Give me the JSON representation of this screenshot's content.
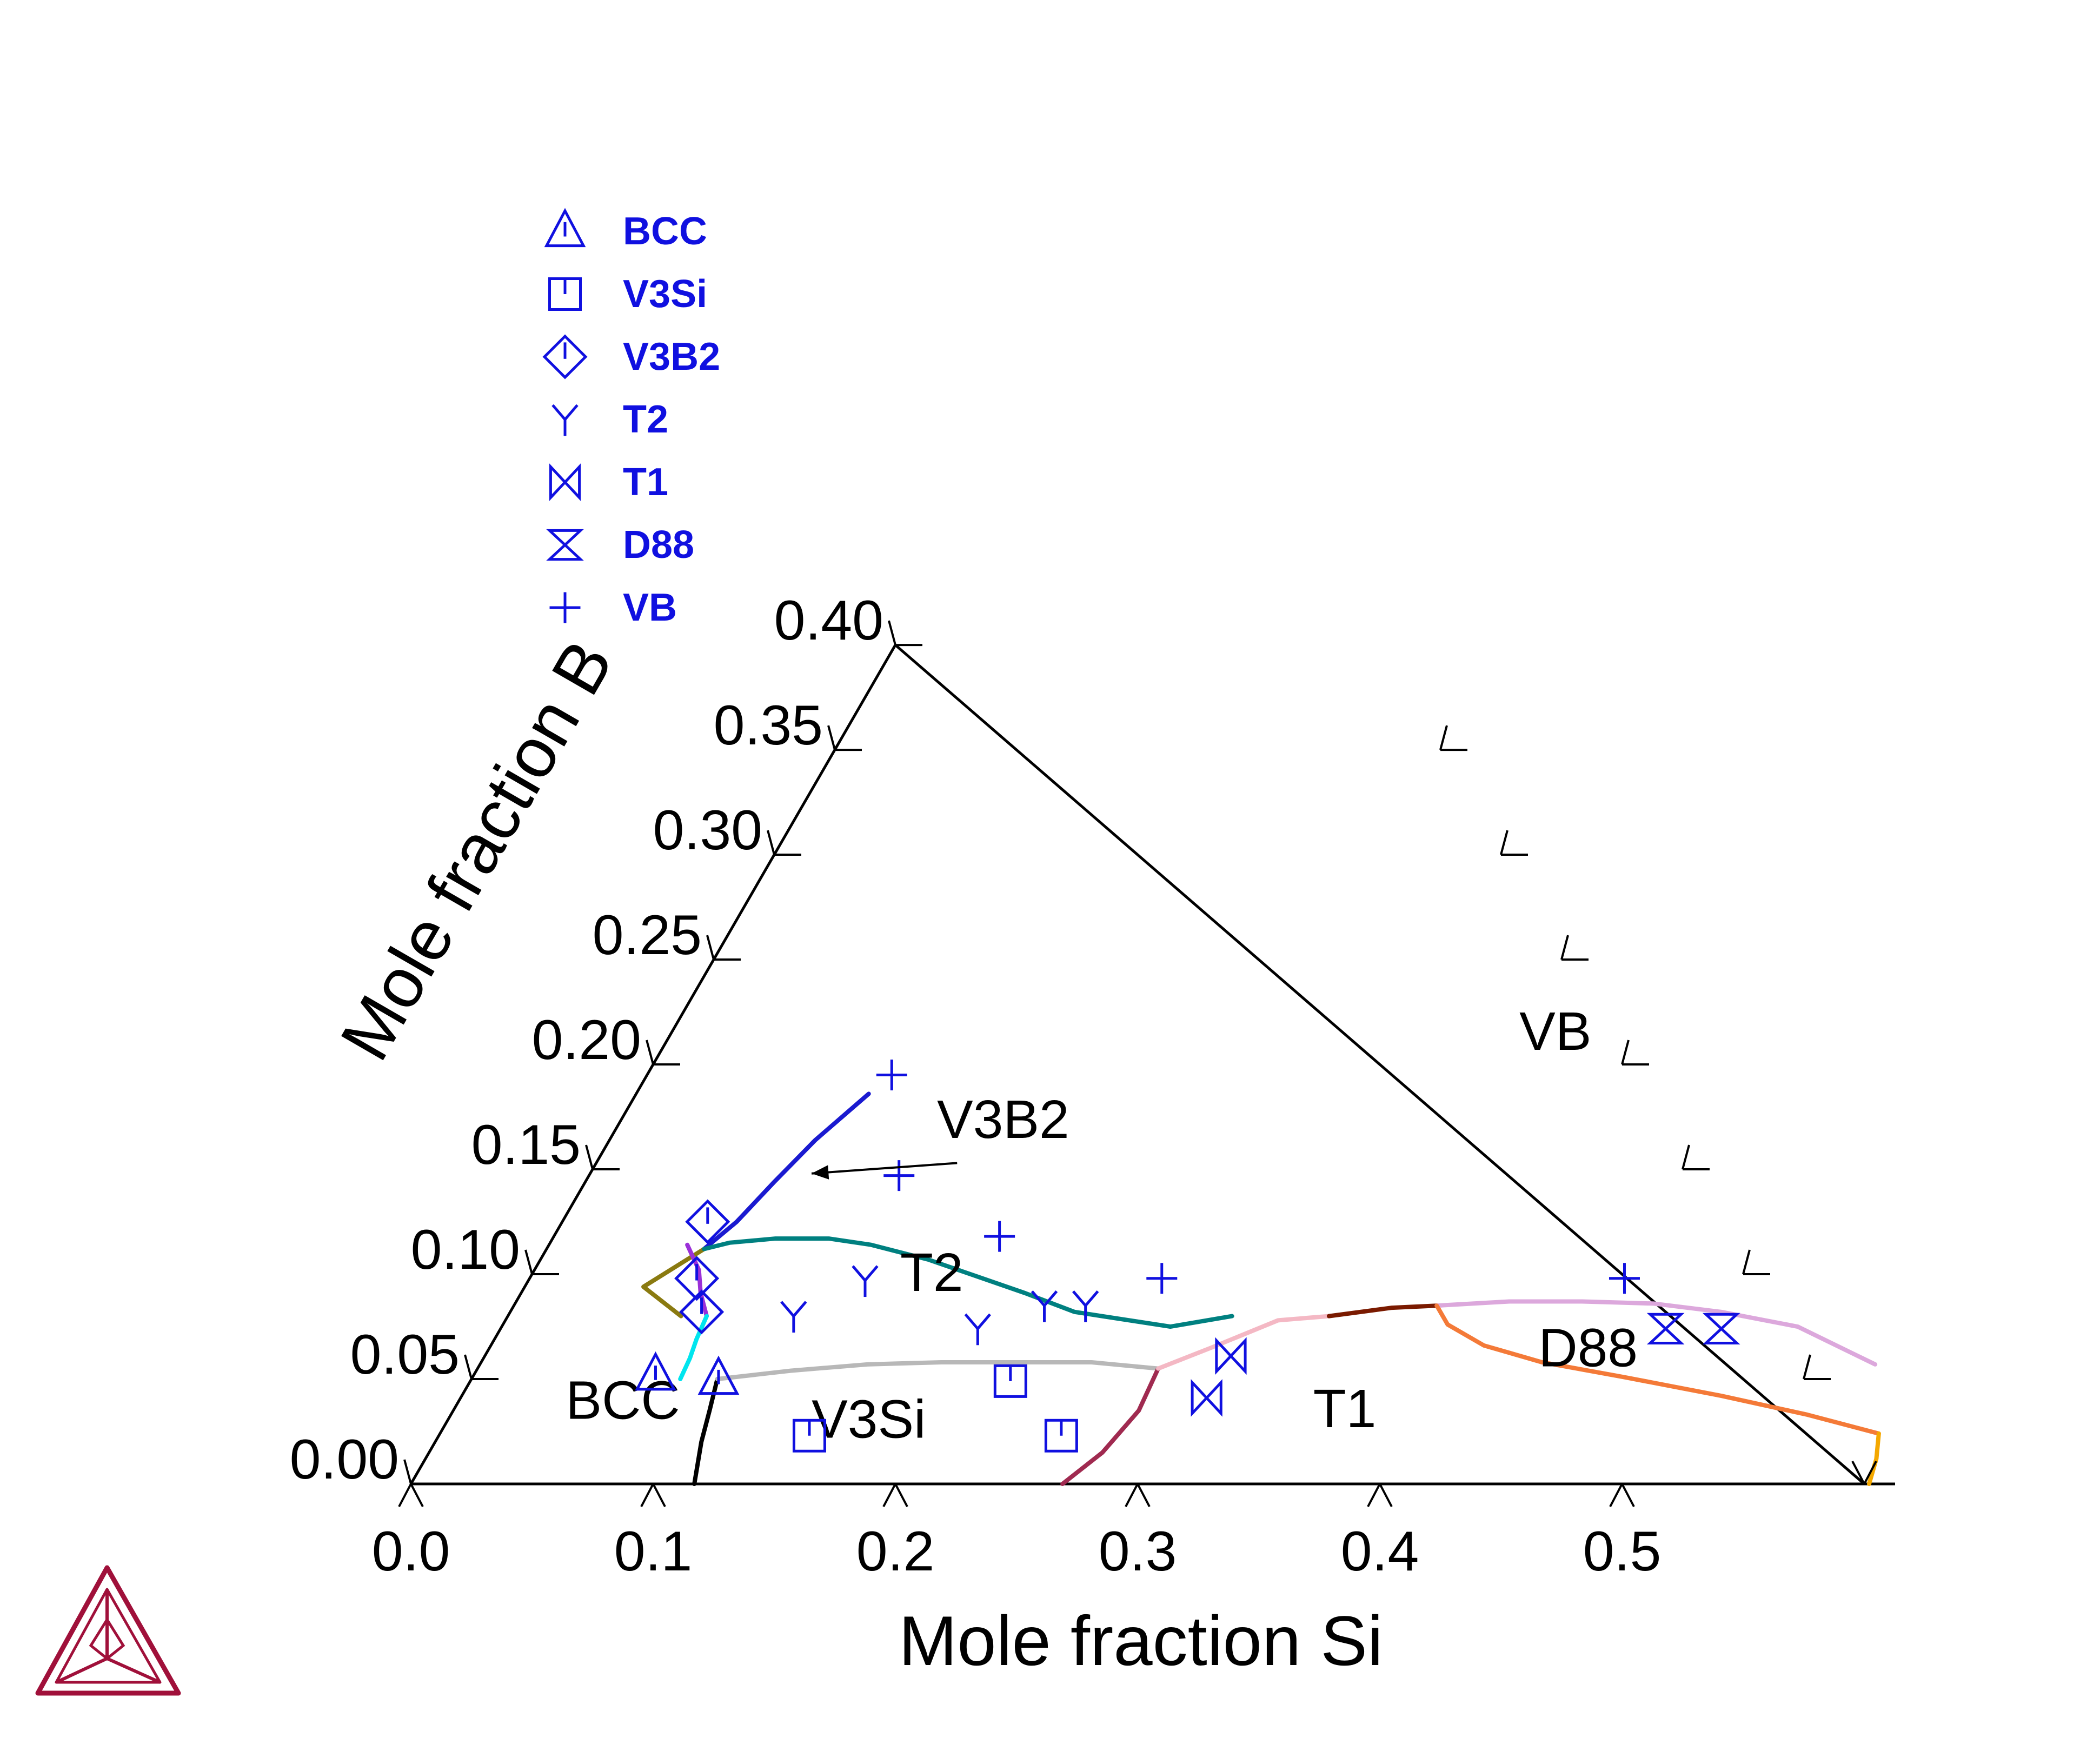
{
  "chart_data": {
    "type": "scatter",
    "subtype": "ternary-phase-diagram",
    "xlabel": "Mole fraction Si",
    "ylabel": "Mole fraction B",
    "xlim": [
      0,
      0.6
    ],
    "ylim": [
      0,
      0.4
    ],
    "x_ticks": [
      "0.0",
      "0.1",
      "0.2",
      "0.3",
      "0.4",
      "0.5"
    ],
    "y_ticks": [
      "0.00",
      "0.05",
      "0.10",
      "0.15",
      "0.20",
      "0.25",
      "0.30",
      "0.35",
      "0.40"
    ],
    "legend_position": "top-left",
    "marker_color": "#1010e0",
    "legend": [
      {
        "name": "BCC",
        "marker": "triangle"
      },
      {
        "name": "V3Si",
        "marker": "square"
      },
      {
        "name": "V3B2",
        "marker": "diamond"
      },
      {
        "name": "T2",
        "marker": "y-mark"
      },
      {
        "name": "T1",
        "marker": "bowtie"
      },
      {
        "name": "D88",
        "marker": "hourglass"
      },
      {
        "name": "VB",
        "marker": "plus"
      }
    ],
    "series": [
      {
        "name": "BCC",
        "marker": "triangle",
        "points": [
          [
            0.075,
            0.052
          ],
          [
            0.102,
            0.05
          ]
        ]
      },
      {
        "name": "V3Si",
        "marker": "square",
        "points": [
          [
            0.223,
            0.049
          ],
          [
            0.153,
            0.023
          ],
          [
            0.257,
            0.023
          ]
        ]
      },
      {
        "name": "V3B2",
        "marker": "diamond",
        "points": [
          [
            0.06,
            0.125
          ],
          [
            0.069,
            0.098
          ],
          [
            0.079,
            0.082
          ]
        ]
      },
      {
        "name": "T2",
        "marker": "y-mark",
        "points": [
          [
            0.139,
            0.097
          ],
          [
            0.118,
            0.08
          ],
          [
            0.197,
            0.074
          ],
          [
            0.219,
            0.085
          ],
          [
            0.236,
            0.085
          ]
        ]
      },
      {
        "name": "T1",
        "marker": "bowtie",
        "points": [
          [
            0.308,
            0.061
          ],
          [
            0.308,
            0.041
          ]
        ]
      },
      {
        "name": "D88",
        "marker": "hourglass",
        "points": [
          [
            0.481,
            0.074
          ],
          [
            0.504,
            0.074
          ]
        ]
      },
      {
        "name": "VB",
        "marker": "plus",
        "points": [
          [
            0.101,
            0.195
          ],
          [
            0.128,
            0.147
          ],
          [
            0.184,
            0.118
          ],
          [
            0.261,
            0.098
          ],
          [
            0.452,
            0.098
          ]
        ]
      }
    ],
    "boundaries": [
      {
        "color": "#1a1ad0",
        "points": [
          [
            0.096,
            0.186
          ],
          [
            0.085,
            0.164
          ],
          [
            0.078,
            0.144
          ],
          [
            0.072,
            0.125
          ],
          [
            0.065,
            0.112
          ]
        ]
      },
      {
        "color": "#8a7a10",
        "points": [
          [
            0.065,
            0.112
          ],
          [
            0.049,
            0.094
          ],
          [
            0.0715,
            0.08
          ]
        ]
      },
      {
        "color": "#008080",
        "points": [
          [
            0.065,
            0.112
          ],
          [
            0.074,
            0.115
          ],
          [
            0.092,
            0.117
          ],
          [
            0.114,
            0.117
          ],
          [
            0.133,
            0.114
          ],
          [
            0.16,
            0.107
          ],
          [
            0.181,
            0.1
          ],
          [
            0.208,
            0.091
          ],
          [
            0.233,
            0.082
          ],
          [
            0.276,
            0.075
          ],
          [
            0.299,
            0.08
          ]
        ]
      },
      {
        "color": "#9b30d8",
        "points": [
          [
            0.0571,
            0.114
          ],
          [
            0.0679,
            0.102
          ],
          [
            0.0741,
            0.091
          ],
          [
            0.0821,
            0.08
          ]
        ]
      },
      {
        "color": "#00e5ee",
        "points": [
          [
            0.0821,
            0.08
          ],
          [
            0.0834,
            0.069
          ],
          [
            0.0852,
            0.06
          ],
          [
            0.0862,
            0.05
          ]
        ]
      },
      {
        "color": "#000000",
        "points": [
          [
            0.1015,
            0.05
          ],
          [
            0.1058,
            0.035
          ],
          [
            0.1099,
            0.02
          ],
          [
            0.117,
            0
          ]
        ]
      },
      {
        "color": "#b8b8b8",
        "points": [
          [
            0.1015,
            0.05
          ],
          [
            0.13,
            0.054
          ],
          [
            0.16,
            0.057
          ],
          [
            0.19,
            0.058
          ],
          [
            0.22,
            0.058
          ],
          [
            0.252,
            0.058
          ],
          [
            0.281,
            0.055
          ]
        ]
      },
      {
        "color": "#a02a50",
        "points": [
          [
            0.281,
            0.055
          ],
          [
            0.283,
            0.035
          ],
          [
            0.278,
            0.015
          ],
          [
            0.269,
            0
          ]
        ]
      },
      {
        "color": "#f4b8c4",
        "points": [
          [
            0.281,
            0.055
          ],
          [
            0.298,
            0.065
          ],
          [
            0.319,
            0.078
          ],
          [
            0.339,
            0.08
          ]
        ]
      },
      {
        "color": "#7a1a00",
        "points": [
          [
            0.339,
            0.08
          ],
          [
            0.363,
            0.084
          ],
          [
            0.381,
            0.085
          ]
        ]
      },
      {
        "color": "#dca8dc",
        "points": [
          [
            0.381,
            0.085
          ],
          [
            0.41,
            0.087
          ],
          [
            0.44,
            0.087
          ],
          [
            0.47,
            0.086
          ],
          [
            0.5,
            0.082
          ],
          [
            0.535,
            0.075
          ],
          [
            0.576,
            0.057
          ]
        ]
      },
      {
        "color": "#f47a38",
        "points": [
          [
            0.381,
            0.085
          ],
          [
            0.39,
            0.076
          ],
          [
            0.41,
            0.066
          ],
          [
            0.438,
            0.058
          ],
          [
            0.475,
            0.051
          ],
          [
            0.52,
            0.042
          ],
          [
            0.56,
            0.033
          ],
          [
            0.594,
            0.024
          ]
        ]
      },
      {
        "color": "#f4a800",
        "points": [
          [
            0.594,
            0.024
          ],
          [
            0.599,
            0.012
          ],
          [
            0.602,
            0
          ]
        ]
      }
    ],
    "region_labels": [
      {
        "text": "VB",
        "x": 0.369,
        "y": 0.207
      },
      {
        "text": "V3B2",
        "x": 0.162,
        "y": 0.165
      },
      {
        "text": "T2",
        "x": 0.169,
        "y": 0.092
      },
      {
        "text": "BCC",
        "x": 0.072,
        "y": 0.031
      },
      {
        "text": "V3Si",
        "x": 0.178,
        "y": 0.022
      },
      {
        "text": "T1",
        "x": 0.372,
        "y": 0.027
      },
      {
        "text": "D88",
        "x": 0.458,
        "y": 0.056
      }
    ],
    "annotation_arrow": {
      "from": [
        0.149,
        0.153
      ],
      "to": [
        0.0914,
        0.148
      ],
      "label": "V3B2"
    }
  },
  "logo": {
    "name": "thermo-calc-logo",
    "color": "#a0103a"
  }
}
